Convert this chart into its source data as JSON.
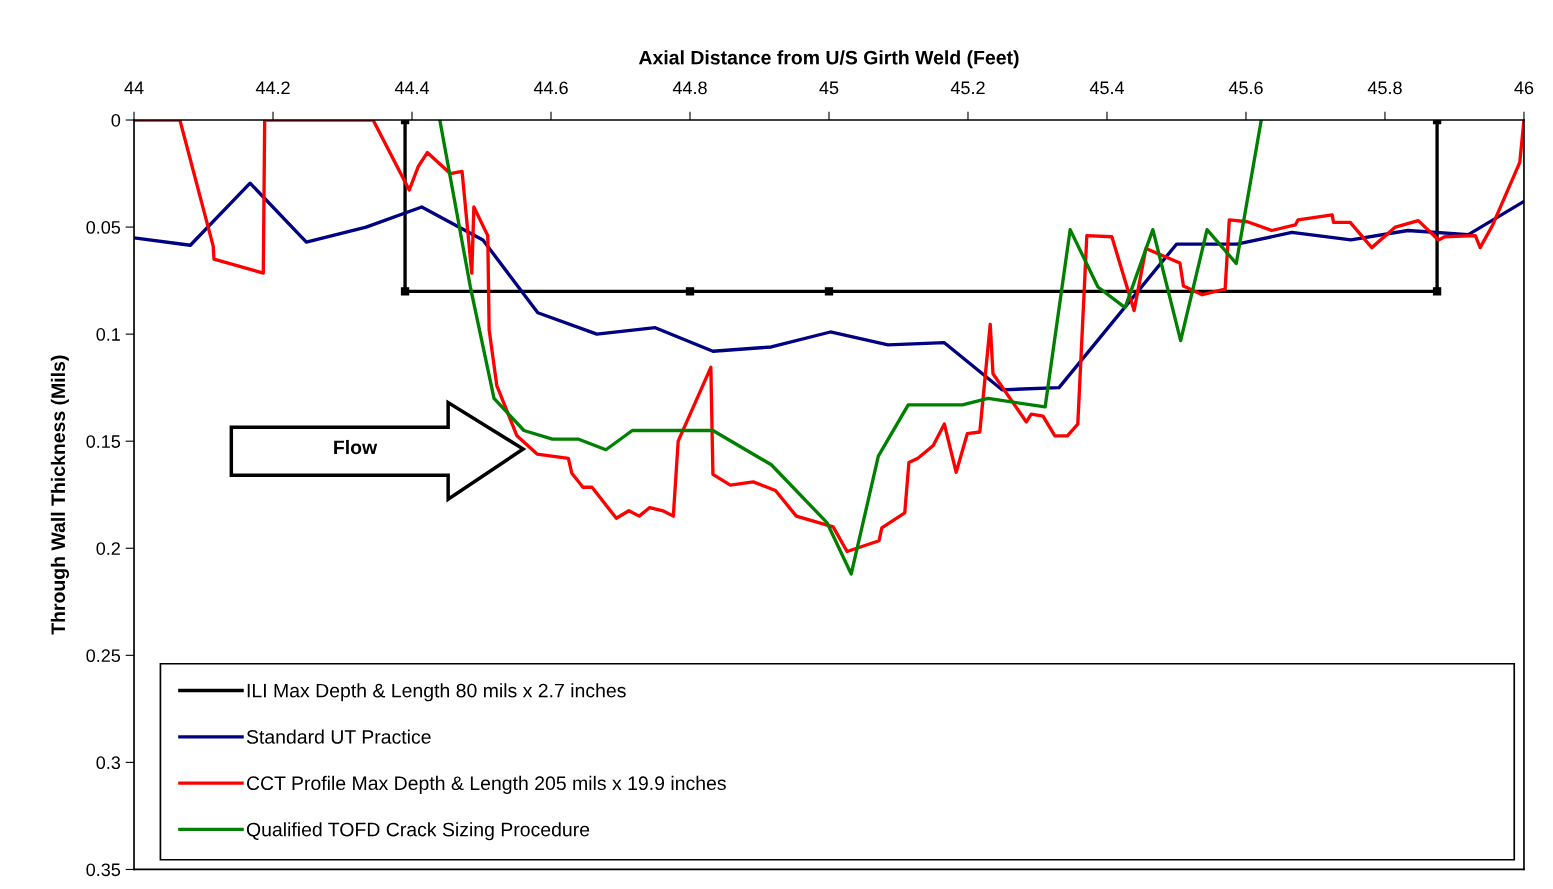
{
  "chart_data": {
    "type": "line",
    "xlabel": "Axial Distance from U/S Girth Weld (Feet)",
    "ylabel": "Through Wall Thickness (Mils)",
    "xlim": [
      44,
      46
    ],
    "xticks": [
      44,
      44.2,
      44.4,
      44.6,
      44.8,
      45,
      45.2,
      45.4,
      45.6,
      45.8,
      46
    ],
    "ylim": [
      0.35,
      0
    ],
    "yticks": [
      0,
      0.05,
      0.1,
      0.15,
      0.2,
      0.25,
      0.3,
      0.35
    ],
    "grid": false,
    "legend": "bottom",
    "line_style": "solid",
    "annotations": [
      "Flow"
    ],
    "series": [
      {
        "name": "ILI Max Depth & Length 80 mils x 2.7 inches",
        "color": "#000000",
        "marker": "square",
        "x": [
          44.39,
          44.39,
          44.8,
          45.0,
          45.875,
          45.875
        ],
        "values": [
          0,
          0.08,
          0.08,
          0.08,
          0.08,
          0
        ]
      },
      {
        "name": "Standard UT Practice",
        "color": "#000080",
        "x": [
          44.0,
          44.081,
          44.167,
          44.248,
          44.334,
          44.414,
          44.502,
          44.581,
          44.666,
          44.75,
          44.833,
          44.917,
          45.002,
          45.085,
          45.166,
          45.249,
          45.331,
          45.5,
          45.587,
          45.666,
          45.751,
          45.833,
          45.92,
          46.0
        ],
        "values": [
          0.055,
          0.0585,
          0.0295,
          0.057,
          0.05,
          0.0406,
          0.056,
          0.09,
          0.1,
          0.097,
          0.108,
          0.106,
          0.099,
          0.105,
          0.104,
          0.126,
          0.125,
          0.058,
          0.058,
          0.0525,
          0.056,
          0.0516,
          0.0535,
          0.038
        ]
      },
      {
        "name": "CCT Profile Max Depth & Length 205 mils x 19.9 inches",
        "color": "#ff0000",
        "x": [
          44.0,
          44.066,
          44.114,
          44.115,
          44.186,
          44.188,
          44.344,
          44.396,
          44.409,
          44.422,
          44.455,
          44.472,
          44.486,
          44.489,
          44.509,
          44.511,
          44.522,
          44.551,
          44.58,
          44.625,
          44.63,
          44.646,
          44.659,
          44.694,
          44.712,
          44.727,
          44.742,
          44.761,
          44.776,
          44.783,
          44.83,
          44.833,
          44.858,
          44.891,
          44.923,
          44.953,
          45.006,
          45.026,
          45.072,
          45.076,
          45.109,
          45.115,
          45.128,
          45.15,
          45.166,
          45.183,
          45.199,
          45.217,
          45.232,
          45.236,
          45.284,
          45.291,
          45.308,
          45.325,
          45.343,
          45.358,
          45.371,
          45.407,
          45.439,
          45.456,
          45.505,
          45.51,
          45.537,
          45.57,
          45.576,
          45.602,
          45.637,
          45.671,
          45.675,
          45.724,
          45.726,
          45.75,
          45.781,
          45.815,
          45.848,
          45.877,
          45.886,
          45.93,
          45.937,
          45.955,
          45.994,
          46.0
        ],
        "values": [
          0,
          0,
          0.059,
          0.065,
          0.0715,
          0,
          0,
          0.0327,
          0.0217,
          0.0152,
          0.025,
          0.024,
          0.0715,
          0.0406,
          0.054,
          0.098,
          0.124,
          0.1475,
          0.156,
          0.158,
          0.165,
          0.1715,
          0.1715,
          0.186,
          0.1825,
          0.185,
          0.181,
          0.1825,
          0.185,
          0.15,
          0.1155,
          0.1655,
          0.1705,
          0.169,
          0.173,
          0.185,
          0.19,
          0.2015,
          0.1965,
          0.1905,
          0.1835,
          0.16,
          0.158,
          0.152,
          0.142,
          0.1645,
          0.1465,
          0.1457,
          0.0954,
          0.1185,
          0.141,
          0.1374,
          0.1383,
          0.1475,
          0.1475,
          0.142,
          0.054,
          0.0545,
          0.089,
          0.06,
          0.0668,
          0.0775,
          0.0816,
          0.079,
          0.0466,
          0.0475,
          0.0516,
          0.049,
          0.0466,
          0.0443,
          0.0478,
          0.0478,
          0.0596,
          0.05,
          0.047,
          0.056,
          0.0545,
          0.054,
          0.0596,
          0.049,
          0.0198,
          0
        ]
      },
      {
        "name": "Qualified TOFD Crack Sizing Procedure",
        "color": "#008000",
        "x": [
          44.44,
          44.484,
          44.518,
          44.561,
          44.602,
          44.639,
          44.679,
          44.717,
          44.833,
          44.917,
          44.997,
          45.032,
          45.071,
          45.114,
          45.192,
          45.229,
          45.311,
          45.347,
          45.387,
          45.426,
          45.466,
          45.506,
          45.544,
          45.586,
          45.622
        ],
        "values": [
          0,
          0.078,
          0.13,
          0.145,
          0.149,
          0.149,
          0.154,
          0.145,
          0.145,
          0.161,
          0.188,
          0.212,
          0.157,
          0.133,
          0.133,
          0.13,
          0.134,
          0.0512,
          0.078,
          0.0876,
          0.0512,
          0.103,
          0.0512,
          0.067,
          0
        ]
      }
    ]
  }
}
